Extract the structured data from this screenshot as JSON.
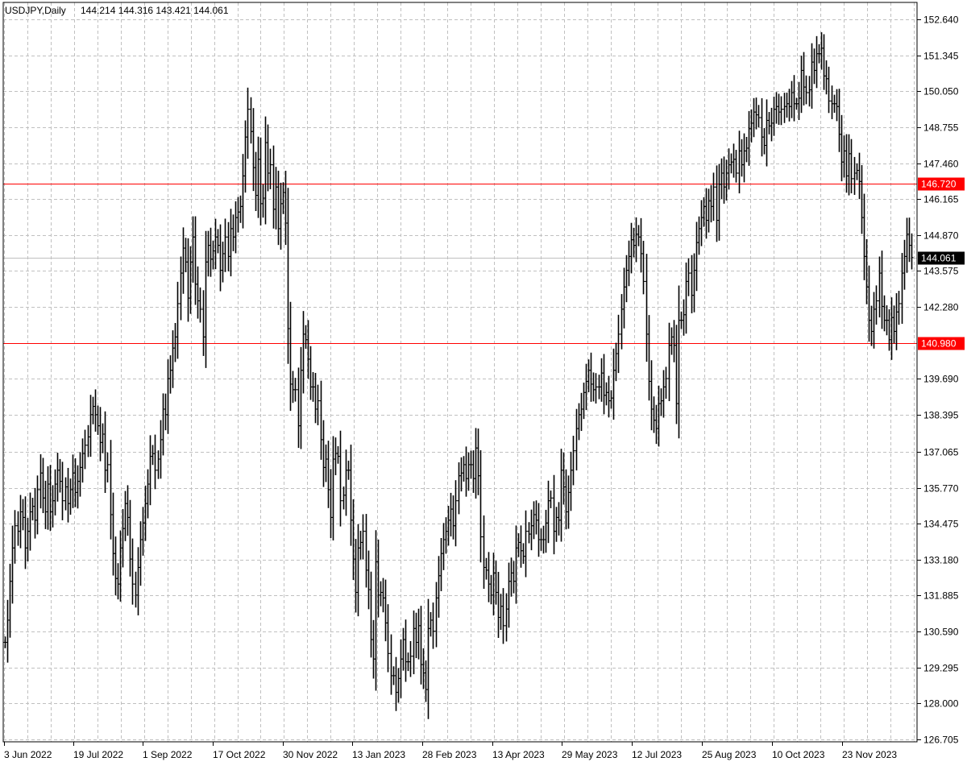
{
  "chart_data": {
    "type": "ohlc",
    "title": "USDJPY,Daily",
    "ohlc_header": "144.214 144.316 143.421 144.061",
    "y_ticks": [
      152.64,
      151.345,
      150.05,
      148.755,
      147.46,
      146.165,
      144.87,
      143.575,
      142.28,
      139.69,
      138.395,
      137.065,
      135.77,
      134.475,
      133.18,
      131.885,
      130.59,
      129.295,
      128.0,
      126.705
    ],
    "y_tick_labels": [
      "152.640",
      "151.345",
      "150.050",
      "148.755",
      "147.460",
      "146.165",
      "144.870",
      "143.575",
      "142.280",
      "139.690",
      "138.395",
      "137.065",
      "135.770",
      "134.475",
      "133.180",
      "131.885",
      "130.590",
      "129.295",
      "128.000",
      "126.705"
    ],
    "ylim": [
      126.705,
      152.64
    ],
    "x_labels": [
      "3 Jun 2022",
      "19 Jul 2022",
      "1 Sep 2022",
      "17 Oct 2022",
      "30 Nov 2022",
      "13 Jan 2023",
      "28 Feb 2023",
      "13 Apr 2023",
      "29 May 2023",
      "12 Jul 2023",
      "25 Aug 2023",
      "10 Oct 2023",
      "23 Nov 2023"
    ],
    "grid": true,
    "horizontal_lines": [
      {
        "value": 146.72,
        "label": "146.720",
        "color": "#ff0000"
      },
      {
        "value": 140.98,
        "label": "140.980",
        "color": "#ff0000"
      }
    ],
    "current_price": {
      "value": 144.061,
      "label": "144.061",
      "color": "#000000"
    },
    "closes": [
      130.2,
      131.0,
      132.4,
      133.6,
      134.4,
      134.2,
      134.9,
      134.7,
      133.6,
      134.2,
      134.9,
      135.1,
      134.6,
      135.7,
      136.3,
      135.4,
      134.9,
      135.9,
      134.9,
      135.3,
      135.9,
      136.4,
      136.0,
      135.3,
      135.8,
      135.2,
      135.7,
      136.3,
      135.6,
      136.0,
      136.5,
      137.0,
      137.3,
      137.6,
      138.4,
      138.7,
      138.4,
      138.0,
      137.4,
      137.7,
      136.4,
      136.6,
      134.8,
      133.4,
      132.5,
      132.3,
      133.6,
      134.3,
      135.2,
      134.7,
      133.2,
      132.3,
      131.9,
      132.9,
      133.9,
      134.5,
      135.2,
      135.9,
      136.9,
      137.0,
      136.4,
      136.8,
      137.5,
      138.6,
      138.4,
      139.7,
      140.0,
      140.8,
      141.2,
      142.4,
      143.5,
      144.4,
      143.9,
      142.6,
      143.9,
      144.8,
      143.1,
      142.5,
      142.2,
      141.2,
      143.9,
      144.5,
      144.0,
      144.3,
      144.8,
      144.5,
      143.6,
      144.2,
      144.8,
      144.1,
      145.1,
      144.8,
      145.5,
      145.7,
      145.9,
      147.0,
      148.4,
      149.4,
      148.6,
      147.3,
      146.3,
      147.6,
      146.0,
      146.2,
      148.2,
      147.1,
      147.4,
      145.8,
      146.6,
      145.1,
      146.0,
      146.4,
      145.3,
      141.5,
      139.5,
      139.3,
      139.3,
      138.0,
      140.0,
      141.3,
      141.1,
      140.4,
      139.4,
      139.4,
      138.6,
      138.9,
      137.5,
      136.5,
      136.8,
      135.7,
      134.7,
      136.8,
      137.0,
      136.9,
      135.3,
      135.5,
      136.4,
      136.4,
      134.6,
      133.2,
      132.0,
      133.6,
      133.8,
      134.2,
      132.8,
      132.1,
      130.3,
      129.6,
      133.1,
      131.9,
      132.0,
      131.8,
      130.9,
      129.8,
      129.0,
      129.0,
      128.4,
      128.9,
      129.6,
      130.3,
      129.5,
      129.5,
      129.7,
      130.7,
      130.2,
      130.8,
      129.4,
      129.1,
      128.5,
      130.7,
      131.0,
      130.6,
      131.8,
      132.6,
      133.4,
      133.9,
      134.2,
      134.6,
      135.0,
      134.4,
      135.3,
      136.2,
      136.3,
      136.6,
      136.1,
      136.6,
      136.6,
      136.1,
      137.2,
      136.2,
      134.0,
      132.9,
      132.8,
      132.3,
      131.9,
      132.7,
      132.0,
      131.1,
      131.5,
      130.8,
      131.4,
      132.4,
      132.7,
      132.4,
      133.6,
      133.8,
      133.5,
      133.3,
      134.2,
      134.1,
      134.4,
      134.8,
      134.6,
      133.9,
      133.9,
      133.9,
      134.5,
      135.3,
      135.4,
      134.2,
      134.7,
      134.6,
      136.4,
      135.8,
      134.9,
      135.6,
      136.4,
      137.1,
      137.9,
      138.4,
      138.6,
      139.2,
      139.6,
      140.0,
      139.5,
      139.3,
      139.4,
      139.4,
      139.9,
      139.1,
      139.2,
      138.9,
      139.0,
      140.0,
      140.6,
      141.3,
      142.2,
      143.0,
      143.6,
      144.1,
      144.7,
      144.5,
      144.9,
      144.8,
      144.2,
      143.2,
      141.3,
      139.6,
      138.6,
      138.2,
      137.9,
      138.8,
      138.9,
      139.4,
      139.7,
      140.9,
      141.2,
      140.9,
      138.8,
      141.8,
      141.8,
      142.0,
      143.2,
      143.5,
      142.7,
      143.6,
      144.6,
      145.1,
      145.5,
      145.9,
      145.4,
      146.1,
      145.9,
      146.6,
      145.4,
      146.7,
      147.1,
      146.6,
      147.1,
      147.4,
      147.5,
      147.6,
      147.1,
      147.9,
      147.4,
      147.9,
      148.0,
      148.7,
      148.9,
      149.3,
      149.2,
      149.1,
      148.4,
      148.1,
      149.0,
      148.8,
      148.9,
      149.4,
      149.5,
      149.3,
      149.4,
      149.5,
      149.6,
      149.5,
      150.0,
      149.6,
      149.6,
      149.8,
      150.8,
      150.2,
      150.0,
      150.1,
      151.1,
      150.8,
      151.4,
      151.4,
      151.6,
      150.6,
      150.5,
      149.7,
      149.6,
      149.6,
      149.5,
      148.5,
      147.5,
      147.9,
      147.0,
      147.8,
      146.9,
      147.1,
      147.2,
      146.8,
      145.5,
      144.1,
      143.0,
      141.8,
      141.4,
      142.2,
      142.5,
      143.5,
      142.3,
      141.8,
      141.8,
      141.1,
      141.9,
      141.4,
      142.1,
      142.4,
      143.5,
      144.1,
      144.9,
      144.5,
      144.061
    ]
  }
}
